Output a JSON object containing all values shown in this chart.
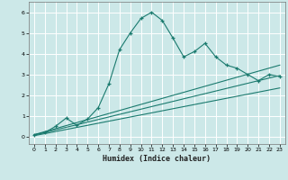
{
  "xlabel": "Humidex (Indice chaleur)",
  "bg_color": "#cce8e8",
  "grid_color": "#ffffff",
  "line_color": "#1a7a6e",
  "xlim": [
    -0.5,
    23.5
  ],
  "ylim": [
    -0.35,
    6.5
  ],
  "xticks": [
    0,
    1,
    2,
    3,
    4,
    5,
    6,
    7,
    8,
    9,
    10,
    11,
    12,
    13,
    14,
    15,
    16,
    17,
    18,
    19,
    20,
    21,
    22,
    23
  ],
  "yticks": [
    0,
    1,
    2,
    3,
    4,
    5,
    6
  ],
  "line1_x": [
    0,
    1,
    2,
    3,
    4,
    5,
    6,
    7,
    8,
    9,
    10,
    11,
    12,
    13,
    14,
    15,
    16,
    17,
    18,
    19,
    20,
    21,
    22,
    23
  ],
  "line1_y": [
    0.1,
    0.2,
    0.5,
    0.9,
    0.55,
    0.85,
    1.4,
    2.55,
    4.2,
    5.0,
    5.7,
    6.0,
    5.6,
    4.75,
    3.85,
    4.1,
    4.5,
    3.85,
    3.45,
    3.3,
    3.0,
    2.7,
    3.0,
    2.9
  ],
  "line2_x": [
    0,
    23
  ],
  "line2_y": [
    0.1,
    3.45
  ],
  "line3_x": [
    0,
    23
  ],
  "line3_y": [
    0.08,
    2.95
  ],
  "line4_x": [
    0,
    23
  ],
  "line4_y": [
    0.05,
    2.35
  ]
}
